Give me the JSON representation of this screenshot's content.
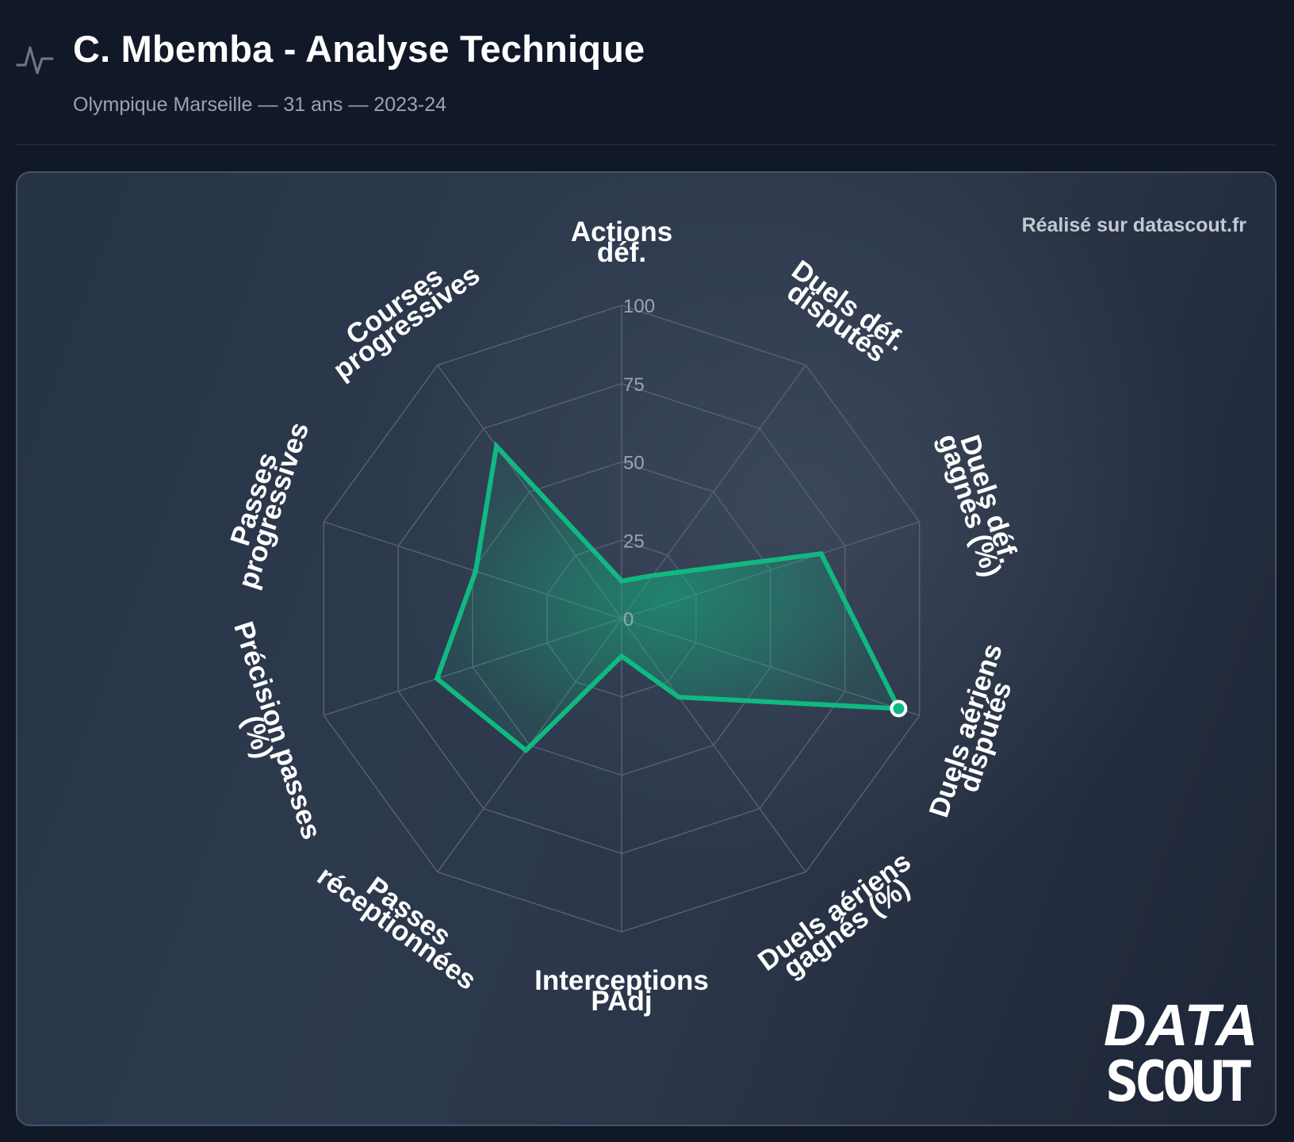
{
  "header": {
    "title": "C. Mbemba - Analyse Technique",
    "subtitle": "Olympique Marseille — 31 ans — 2023-24",
    "icon": "activity-pulse-icon"
  },
  "card": {
    "credit": "Réalisé sur datascout.fr"
  },
  "logo": {
    "line1": "DATA’",
    "line2": "SCOUT"
  },
  "colors": {
    "accent": "#10b981",
    "grid": "#556072",
    "label": "#ffffff",
    "tick": "#9aa3b2"
  },
  "chart_data": {
    "type": "radar",
    "range": [
      0,
      100
    ],
    "ticks": [
      "0",
      "25",
      "50",
      "75",
      "100"
    ],
    "grid": true,
    "categories": [
      [
        "Actions",
        "déf."
      ],
      [
        "Duels déf.",
        "disputés"
      ],
      [
        "Duels déf.",
        "gagnés (%)"
      ],
      [
        "Duels aériens",
        "disputés"
      ],
      [
        "Duels aériens",
        "gagnés (%)"
      ],
      [
        "Interceptions",
        "PAdj"
      ],
      [
        "Passes",
        "réceptionnées"
      ],
      [
        "Précision passes",
        "(%)"
      ],
      [
        "Passes",
        "progressives"
      ],
      [
        "Courses",
        "progressives"
      ]
    ],
    "values": [
      12,
      17,
      67,
      93,
      31,
      12,
      52,
      62,
      49,
      68
    ]
  }
}
